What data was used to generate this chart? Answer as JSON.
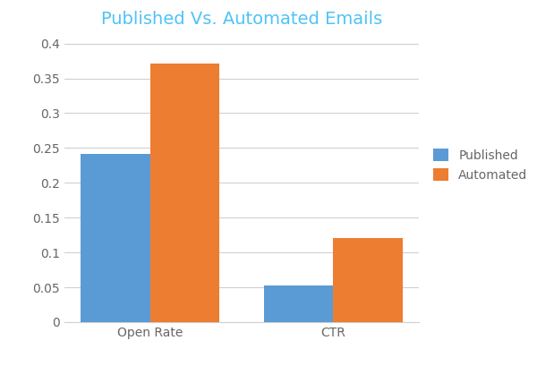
{
  "title": "Published Vs. Automated Emails",
  "title_color": "#4FC3F7",
  "categories": [
    "Open Rate",
    "CTR"
  ],
  "published_values": [
    0.242,
    0.052
  ],
  "automated_values": [
    0.371,
    0.121
  ],
  "published_color": "#5B9BD5",
  "automated_color": "#ED7D31",
  "legend_labels": [
    "Published",
    "Automated"
  ],
  "ylim": [
    0,
    0.41
  ],
  "yticks": [
    0,
    0.05,
    0.1,
    0.15,
    0.2,
    0.25,
    0.3,
    0.35,
    0.4
  ],
  "bar_width": 0.38,
  "background_color": "#ffffff",
  "grid_color": "#d0d0d0",
  "title_fontsize": 14,
  "tick_fontsize": 10,
  "legend_fontsize": 10,
  "axis_text_color": "#666666"
}
